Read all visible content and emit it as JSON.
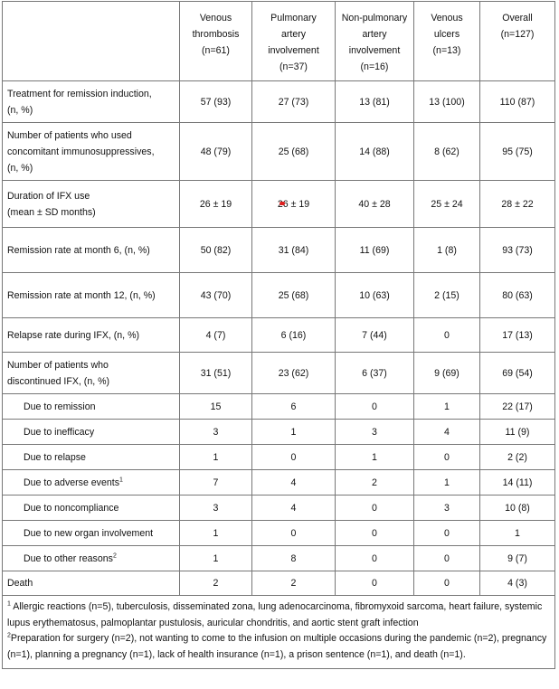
{
  "table": {
    "header": [
      [],
      [
        "Venous",
        "thrombosis",
        "(n=61)"
      ],
      [
        "Pulmonary",
        "artery",
        "involvement",
        "(n=37)"
      ],
      [
        "Non-pulmonary",
        "artery",
        "involvement",
        "(n=16)"
      ],
      [
        "Venous",
        "ulcers",
        "(n=13)"
      ],
      [
        "Overall",
        "(n=127)"
      ]
    ],
    "rows": [
      {
        "label": [
          "Treatment for remission induction,",
          "(n, %)"
        ],
        "values": [
          "57 (93)",
          "27 (73)",
          "13 (81)",
          "13 (100)",
          "110 (87)"
        ]
      },
      {
        "label": [
          "Number of patients who used",
          "concomitant immunosuppressives,",
          "(n, %)"
        ],
        "values": [
          "48 (79)",
          "25 (68)",
          "14 (88)",
          "8 (62)",
          "95 (75)"
        ]
      },
      {
        "label": [
          "Duration of IFX use",
          "(mean ± SD months)"
        ],
        "values": [
          "26 ± 19",
          "26 ± 19",
          "40 ± 28",
          "25 ± 24",
          "28 ± 22"
        ]
      },
      {
        "label": [
          "Remission rate at month 6, (n, %)"
        ],
        "values": [
          "50 (82)",
          "31 (84)",
          "11 (69)",
          "1 (8)",
          "93 (73)"
        ]
      },
      {
        "label": [
          "Remission rate at month 12, (n, %)"
        ],
        "values": [
          "43 (70)",
          "25 (68)",
          "10 (63)",
          "2 (15)",
          "80 (63)"
        ]
      },
      {
        "label": [
          "Relapse rate during IFX, (n, %)"
        ],
        "values": [
          "4 (7)",
          "6 (16)",
          "7 (44)",
          "0",
          "17 (13)"
        ]
      },
      {
        "label": [
          "Number of patients who",
          "discontinued IFX, (n, %)"
        ],
        "values": [
          "31 (51)",
          "23 (62)",
          "6 (37)",
          "9 (69)",
          "69 (54)"
        ],
        "subrows": [
          {
            "label": "Due to remission",
            "values": [
              "15",
              "6",
              "0",
              "1",
              "22 (17)"
            ]
          },
          {
            "label": "Due to inefficacy",
            "values": [
              "3",
              "1",
              "3",
              "4",
              "11 (9)"
            ]
          },
          {
            "label": "Due to relapse",
            "values": [
              "1",
              "0",
              "1",
              "0",
              "2 (2)"
            ]
          },
          {
            "label": "Due to adverse events",
            "sup": "1",
            "values": [
              "7",
              "4",
              "2",
              "1",
              "14 (11)"
            ]
          },
          {
            "label": "Due to noncompliance",
            "values": [
              "3",
              "4",
              "0",
              "3",
              "10 (8)"
            ]
          },
          {
            "label": "Due to new organ involvement",
            "values": [
              "1",
              "0",
              "0",
              "0",
              "1"
            ]
          },
          {
            "label": "Due to other reasons",
            "sup": "2",
            "values": [
              "1",
              "8",
              "0",
              "0",
              "9 (7)"
            ]
          }
        ]
      },
      {
        "label": [
          "Death"
        ],
        "values": [
          "2",
          "2",
          "0",
          "0",
          "4 (3)"
        ]
      }
    ],
    "footnotes": [
      {
        "sup": "1",
        "text": " Allergic reactions (n=5), tuberculosis, disseminated zona, lung adenocarcinoma, fibromyxoid sarcoma, heart failure, systemic lupus erythematosus, palmoplantar pustulosis, auricular chondritis, and aortic stent graft infection"
      },
      {
        "sup": "2",
        "text": "Preparation for surgery (n=2), not wanting to come to the infusion on multiple occasions during the pandemic (n=2), pregnancy (n=1), planning a pregnancy (n=1), lack of health insurance (n=1),  a prison sentence (n=1), and death (n=1)."
      }
    ]
  }
}
